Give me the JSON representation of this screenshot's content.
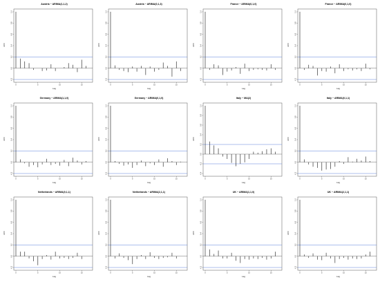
{
  "chart_data": [
    {
      "type": "bar",
      "title": "Austria ~ ARIMA(1,1,2)",
      "xlabel": "Lag",
      "ylabel": "ACF",
      "xlim": [
        0,
        17
      ],
      "ylim": [
        -0.2,
        1.0
      ],
      "ci": 0.2,
      "x": [
        0,
        1,
        2,
        3,
        4,
        5,
        6,
        7,
        8,
        9,
        10,
        11,
        12,
        13,
        14,
        15,
        16
      ],
      "values": [
        1.0,
        0.17,
        0.12,
        0.09,
        -0.03,
        0.0,
        -0.05,
        -0.04,
        0.07,
        -0.05,
        0.0,
        0.02,
        0.09,
        0.06,
        -0.07,
        0.15,
        0.04
      ]
    },
    {
      "type": "bar",
      "title": "Austria ~ ARIMA(0,1,3)",
      "xlabel": "Lag",
      "ylabel": "ACF",
      "xlim": [
        0,
        17
      ],
      "ylim": [
        -0.2,
        1.0
      ],
      "ci": 0.2,
      "x": [
        0,
        1,
        2,
        3,
        4,
        5,
        6,
        7,
        8,
        9,
        10,
        11,
        12,
        13,
        14,
        15,
        16
      ],
      "values": [
        1.0,
        0.05,
        -0.03,
        -0.05,
        -0.07,
        0.03,
        -0.06,
        0.04,
        -0.12,
        0.03,
        -0.06,
        -0.03,
        0.1,
        0.04,
        -0.15,
        0.12,
        -0.05
      ]
    },
    {
      "type": "bar",
      "title": "France ~ ARIMA(0,1,0)",
      "xlabel": "Lag",
      "ylabel": "ACF",
      "xlim": [
        0,
        17
      ],
      "ylim": [
        -0.2,
        1.0
      ],
      "ci": 0.2,
      "x": [
        0,
        1,
        2,
        3,
        4,
        5,
        6,
        7,
        8,
        9,
        10,
        11,
        12,
        13,
        14,
        15,
        16
      ],
      "values": [
        1.0,
        -0.03,
        0.07,
        0.05,
        -0.12,
        -0.06,
        -0.04,
        0.02,
        -0.1,
        0.08,
        -0.05,
        -0.03,
        -0.02,
        -0.03,
        -0.04,
        0.07,
        -0.03
      ]
    },
    {
      "type": "bar",
      "title": "France ~ ARIMA(0,1,0)",
      "xlabel": "Lag",
      "ylabel": "ACF",
      "xlim": [
        0,
        17
      ],
      "ylim": [
        -0.2,
        1.0
      ],
      "ci": 0.2,
      "x": [
        0,
        1,
        2,
        3,
        4,
        5,
        6,
        7,
        8,
        9,
        10,
        11,
        12,
        13,
        14,
        15,
        16
      ],
      "values": [
        1.0,
        -0.03,
        0.06,
        0.04,
        -0.13,
        -0.05,
        -0.06,
        0.03,
        -0.09,
        0.07,
        -0.05,
        -0.02,
        -0.04,
        -0.02,
        -0.05,
        0.08,
        -0.02
      ]
    },
    {
      "type": "bar",
      "title": "Germany ~ ARIMA(1,1,0)",
      "xlabel": "Lag",
      "ylabel": "ACF",
      "xlim": [
        0,
        17
      ],
      "ylim": [
        -0.2,
        1.0
      ],
      "ci": 0.2,
      "x": [
        0,
        1,
        2,
        3,
        4,
        5,
        6,
        7,
        8,
        9,
        10,
        11,
        12,
        13,
        14,
        15,
        16
      ],
      "values": [
        1.0,
        0.05,
        -0.02,
        -0.08,
        -0.05,
        -0.09,
        -0.04,
        0.06,
        -0.05,
        -0.03,
        -0.06,
        0.04,
        -0.07,
        0.08,
        0.03,
        -0.04,
        0.02
      ]
    },
    {
      "type": "bar",
      "title": "Germany ~ ARIMA(0,1,0)",
      "xlabel": "Lag",
      "ylabel": "ACF",
      "xlim": [
        0,
        17
      ],
      "ylim": [
        -0.2,
        1.0
      ],
      "ci": 0.2,
      "x": [
        0,
        1,
        2,
        3,
        4,
        5,
        6,
        7,
        8,
        9,
        10,
        11,
        12,
        13,
        14,
        15,
        16
      ],
      "values": [
        1.0,
        0.02,
        -0.03,
        -0.06,
        -0.04,
        -0.1,
        -0.05,
        0.03,
        -0.07,
        -0.02,
        -0.05,
        0.05,
        -0.08,
        0.07,
        0.02,
        -0.05,
        0.01
      ]
    },
    {
      "type": "bar",
      "title": "Italy ~ MA(2)",
      "xlabel": "Lag",
      "ylabel": "ACF",
      "xlim": [
        0,
        17
      ],
      "ylim": [
        -0.4,
        1.0
      ],
      "ci": 0.2,
      "x": [
        0,
        1,
        2,
        3,
        4,
        5,
        6,
        7,
        8,
        9,
        10,
        11,
        12,
        13,
        14,
        15,
        16
      ],
      "values": [
        1.0,
        0.26,
        0.18,
        0.12,
        -0.05,
        -0.1,
        -0.18,
        -0.25,
        -0.2,
        -0.17,
        -0.1,
        0.05,
        0.03,
        0.06,
        0.1,
        0.12,
        0.05
      ]
    },
    {
      "type": "bar",
      "title": "Italy ~ ARIMA(0,1,1)",
      "xlabel": "Lag",
      "ylabel": "ACF",
      "xlim": [
        0,
        17
      ],
      "ylim": [
        -0.2,
        1.0
      ],
      "ci": 0.2,
      "x": [
        0,
        1,
        2,
        3,
        4,
        5,
        6,
        7,
        8,
        9,
        10,
        11,
        12,
        13,
        14,
        15,
        16
      ],
      "values": [
        1.0,
        0.05,
        -0.04,
        -0.08,
        -0.1,
        -0.15,
        -0.13,
        -0.12,
        -0.08,
        0.02,
        -0.03,
        0.09,
        0.01,
        0.06,
        0.03,
        0.1,
        0.02
      ]
    },
    {
      "type": "bar",
      "title": "Netherlands ~ ARIMA(0,1,1)",
      "xlabel": "Lag",
      "ylabel": "ACF",
      "xlim": [
        0,
        17
      ],
      "ylim": [
        -0.2,
        1.0
      ],
      "ci": 0.2,
      "x": [
        0,
        1,
        2,
        3,
        4,
        5,
        6,
        7,
        8,
        9,
        10,
        11,
        12,
        13,
        14,
        15,
        16
      ],
      "values": [
        1.0,
        0.08,
        0.08,
        -0.04,
        -0.09,
        -0.16,
        -0.05,
        0.02,
        -0.06,
        0.08,
        -0.04,
        -0.03,
        -0.05,
        -0.03,
        0.06,
        -0.05,
        0.0
      ]
    },
    {
      "type": "bar",
      "title": "Netherlands ~ ARIMA(2,1,1)",
      "xlabel": "Lag",
      "ylabel": "ACF",
      "xlim": [
        0,
        17
      ],
      "ylim": [
        -0.2,
        1.0
      ],
      "ci": 0.2,
      "x": [
        0,
        1,
        2,
        3,
        4,
        5,
        6,
        7,
        8,
        9,
        10,
        11,
        12,
        13,
        14,
        15,
        16
      ],
      "values": [
        1.0,
        -0.04,
        0.05,
        -0.03,
        -0.07,
        -0.14,
        -0.05,
        0.02,
        -0.05,
        0.07,
        -0.03,
        -0.05,
        -0.03,
        -0.02,
        0.06,
        -0.04,
        0.0
      ]
    },
    {
      "type": "bar",
      "title": "UK ~ ARIMA(1,1,0)",
      "xlabel": "Lag",
      "ylabel": "ACF",
      "xlim": [
        0,
        17
      ],
      "ylim": [
        -0.2,
        1.0
      ],
      "ci": 0.2,
      "x": [
        0,
        1,
        2,
        3,
        4,
        5,
        6,
        7,
        8,
        9,
        10,
        11,
        12,
        13,
        14,
        15,
        16
      ],
      "values": [
        1.0,
        0.12,
        0.04,
        0.1,
        -0.04,
        -0.04,
        0.06,
        -0.08,
        -0.12,
        -0.05,
        -0.06,
        -0.04,
        -0.05,
        -0.03,
        -0.06,
        -0.04,
        0.08
      ]
    },
    {
      "type": "bar",
      "title": "UK ~ ARIMA(2,1,1)",
      "xlabel": "Lag",
      "ylabel": "ACF",
      "xlim": [
        0,
        17
      ],
      "ylim": [
        -0.2,
        1.0
      ],
      "ci": 0.2,
      "x": [
        0,
        1,
        2,
        3,
        4,
        5,
        6,
        7,
        8,
        9,
        10,
        11,
        12,
        13,
        14,
        15,
        16
      ],
      "values": [
        1.0,
        0.03,
        -0.03,
        0.05,
        -0.06,
        -0.07,
        0.06,
        -0.04,
        -0.12,
        -0.05,
        -0.03,
        -0.06,
        -0.04,
        -0.05,
        -0.04,
        0.03,
        0.08
      ]
    }
  ],
  "x_tick_labels": [
    "0",
    "5",
    "10",
    "15"
  ],
  "ci_color": "#5b7fdb",
  "bar_color": "#333333"
}
